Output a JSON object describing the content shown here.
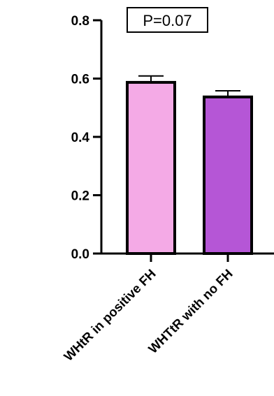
{
  "chart_data": {
    "type": "bar",
    "categories": [
      "WHtR in positive FH",
      "WHTtR with no FH"
    ],
    "values": [
      0.587,
      0.537
    ],
    "errors": [
      0.022,
      0.021
    ],
    "colors": [
      "#f4aae6",
      "#b556d6"
    ],
    "yticks": [
      "0.0",
      "0.2",
      "0.4",
      "0.6",
      "0.8"
    ],
    "ylim": [
      0,
      0.8
    ],
    "annotation": "P=0.07",
    "title": "",
    "xlabel": "",
    "ylabel": ""
  }
}
